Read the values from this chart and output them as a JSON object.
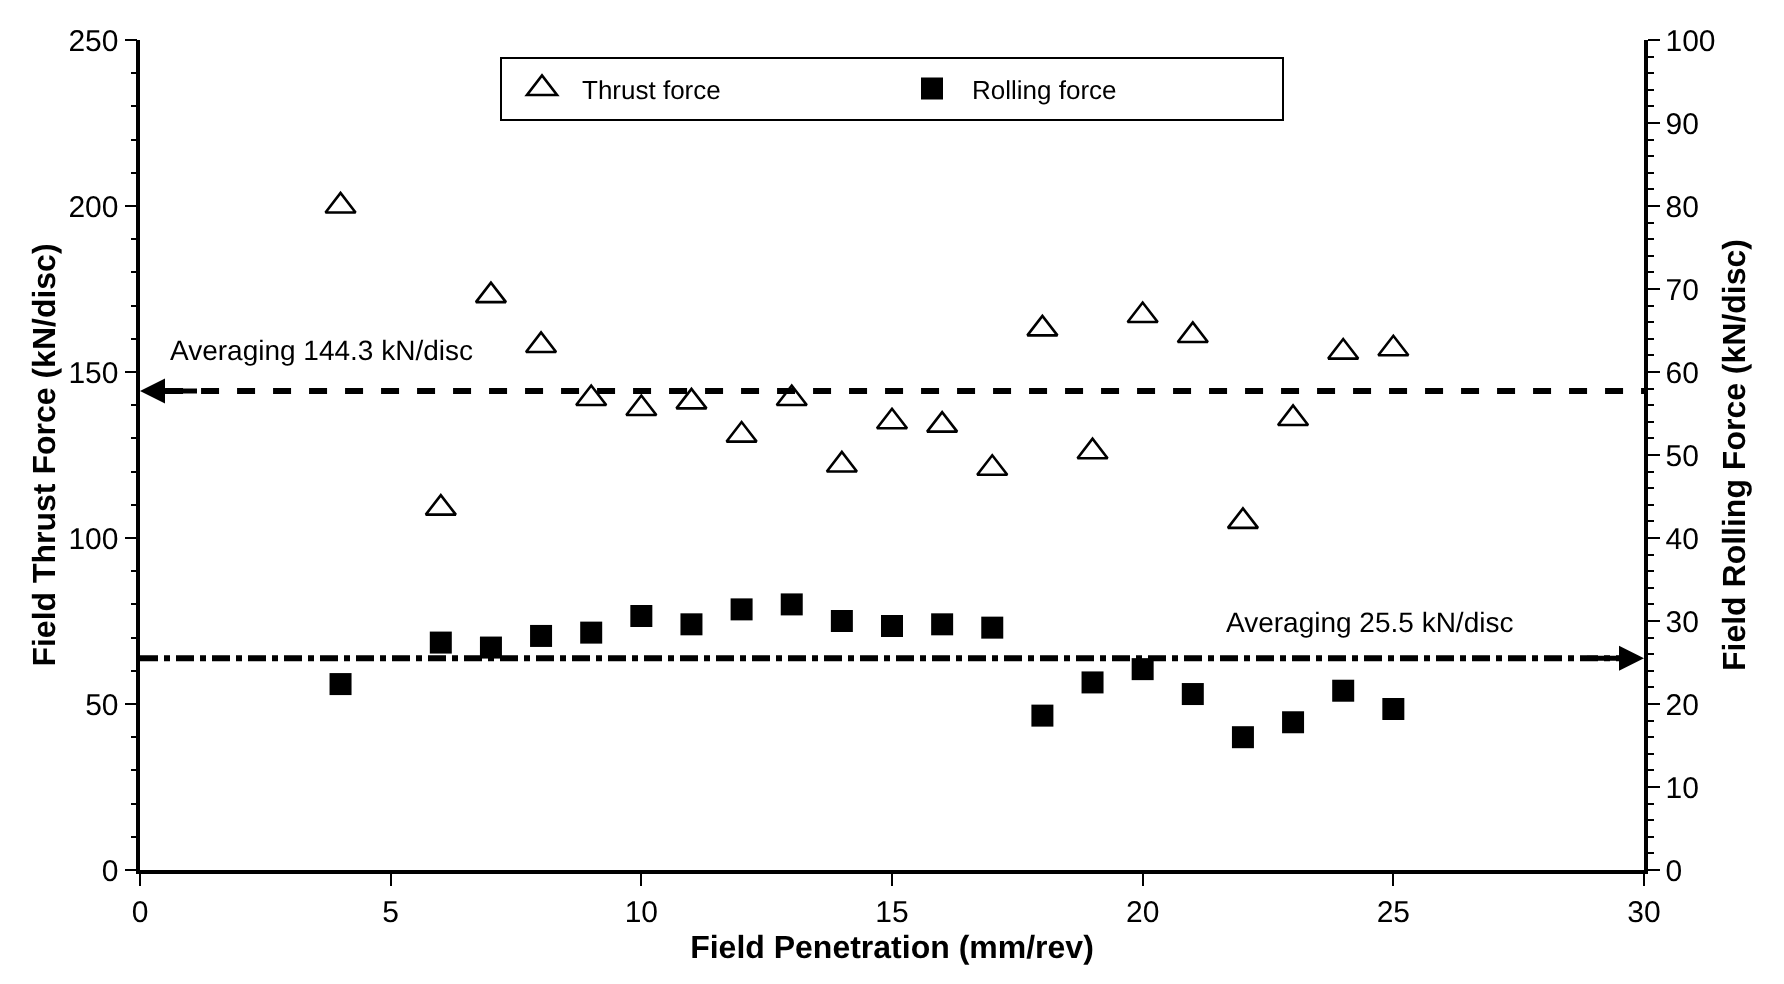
{
  "chart_data": {
    "type": "scatter",
    "xlabel": "Field Penetration (mm/rev)",
    "ylabel": "Field Thrust Force (kN/disc)",
    "y2label": "Field Rolling Force (kN/disc)",
    "x": [
      4,
      6,
      7,
      8,
      9,
      10,
      11,
      12,
      13,
      14,
      15,
      16,
      17,
      18,
      19,
      20,
      21,
      22,
      23,
      24,
      25
    ],
    "series": [
      {
        "name": "Thrust force",
        "color": "#000000",
        "marker": "triangle",
        "values": [
          200,
          109,
          173,
          158,
          142,
          139,
          141,
          131,
          142,
          122,
          135,
          134,
          121,
          163,
          126,
          167,
          161,
          105,
          136,
          156,
          157
        ]
      },
      {
        "name": "Rolling force",
        "color": "#000000",
        "marker": "square",
        "axis": "y2",
        "values": [
          22.4,
          27.4,
          26.8,
          28.2,
          28.6,
          30.6,
          29.6,
          31.4,
          32,
          30,
          29.4,
          29.6,
          29.2,
          18.6,
          22.6,
          24.2,
          21.2,
          16,
          17.8,
          21.6,
          19.4
        ]
      }
    ],
    "xlim": [
      0,
      30
    ],
    "xticks": [
      0,
      5,
      10,
      15,
      20,
      25,
      30
    ],
    "ylim": [
      0,
      250
    ],
    "yticks": [
      0,
      50,
      100,
      150,
      200,
      250
    ],
    "y2lim": [
      0,
      100
    ],
    "y2ticks": [
      0,
      10,
      20,
      30,
      40,
      50,
      60,
      70,
      80,
      90,
      100
    ],
    "ref_lines": [
      {
        "axis": "y",
        "value": 144.3,
        "label": "Averaging 144.3 kN/disc",
        "line_style": "dashed",
        "color": "#000000"
      },
      {
        "axis": "y2",
        "value": 25.5,
        "label": "Averaging 25.5 kN/disc",
        "line_style": "dashdot",
        "color": "#000000"
      }
    ],
    "grid": false,
    "legend": "top"
  }
}
